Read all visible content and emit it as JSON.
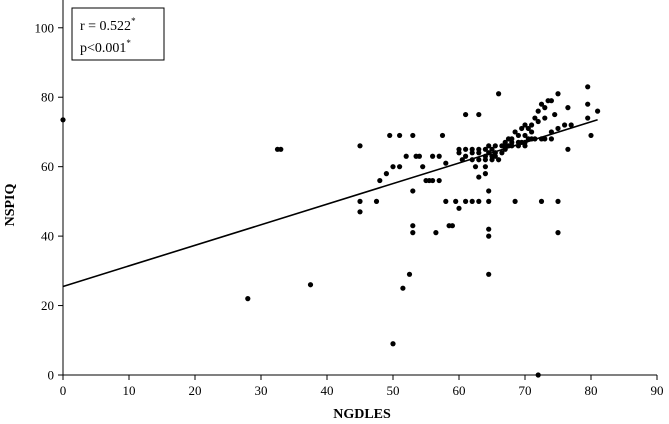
{
  "chart_data": {
    "type": "scatter",
    "title": "",
    "xlabel": "NGDLES",
    "ylabel": "NSPIQ",
    "xlim": [
      0,
      90
    ],
    "ylim": [
      0,
      108
    ],
    "x_ticks": [
      "0",
      "10",
      "20",
      "30",
      "40",
      "50",
      "60",
      "70",
      "80",
      "90"
    ],
    "y_ticks": [
      "0",
      "20",
      "40",
      "60",
      "80",
      "100"
    ],
    "grid": false,
    "legend": "none",
    "annotation": {
      "r_text": "r = 0.522",
      "p_text": "p<0.001",
      "sig_marker": "*"
    },
    "regression_line": {
      "x": [
        0,
        81
      ],
      "y": [
        25.5,
        73.5
      ]
    },
    "colors": {
      "points": "#000000",
      "line": "#000000",
      "axes": "#000000"
    },
    "points": [
      [
        0,
        73.5
      ],
      [
        28,
        22
      ],
      [
        32.5,
        65
      ],
      [
        33,
        65
      ],
      [
        37.5,
        26
      ],
      [
        45,
        66
      ],
      [
        45,
        50
      ],
      [
        45,
        47
      ],
      [
        47.5,
        50
      ],
      [
        48,
        56
      ],
      [
        49,
        58
      ],
      [
        49.5,
        69
      ],
      [
        50,
        60
      ],
      [
        50,
        9
      ],
      [
        51,
        69
      ],
      [
        51,
        60
      ],
      [
        51.5,
        25
      ],
      [
        52,
        63
      ],
      [
        52.5,
        29
      ],
      [
        53,
        69
      ],
      [
        53,
        53
      ],
      [
        53,
        43
      ],
      [
        53,
        41
      ],
      [
        53.5,
        63
      ],
      [
        54,
        63
      ],
      [
        54.5,
        60
      ],
      [
        55,
        56
      ],
      [
        55.5,
        56
      ],
      [
        56,
        63
      ],
      [
        56,
        56
      ],
      [
        56.5,
        41
      ],
      [
        57,
        63
      ],
      [
        57,
        56
      ],
      [
        57.5,
        69
      ],
      [
        58,
        61
      ],
      [
        58,
        50
      ],
      [
        58.5,
        43
      ],
      [
        59,
        43
      ],
      [
        59.5,
        50
      ],
      [
        60,
        48
      ],
      [
        60,
        64
      ],
      [
        60,
        65
      ],
      [
        60.5,
        62
      ],
      [
        61,
        63
      ],
      [
        61,
        65
      ],
      [
        61,
        75
      ],
      [
        61,
        50
      ],
      [
        62,
        62
      ],
      [
        62,
        64
      ],
      [
        62,
        65
      ],
      [
        62,
        50
      ],
      [
        62.5,
        60
      ],
      [
        63,
        75
      ],
      [
        63,
        62
      ],
      [
        63,
        64
      ],
      [
        63,
        65
      ],
      [
        63,
        57
      ],
      [
        63,
        50
      ],
      [
        64,
        65
      ],
      [
        64,
        63
      ],
      [
        64,
        62
      ],
      [
        64,
        60
      ],
      [
        64,
        58
      ],
      [
        64.5,
        64
      ],
      [
        64.5,
        66
      ],
      [
        64.5,
        53
      ],
      [
        64.5,
        50
      ],
      [
        64.5,
        42
      ],
      [
        64.5,
        40
      ],
      [
        64.5,
        29
      ],
      [
        65,
        65
      ],
      [
        65,
        63
      ],
      [
        65,
        62
      ],
      [
        65.5,
        66
      ],
      [
        65.5,
        64
      ],
      [
        65.5,
        63
      ],
      [
        66,
        81
      ],
      [
        66,
        62
      ],
      [
        66.5,
        66
      ],
      [
        66.5,
        64
      ],
      [
        67,
        65
      ],
      [
        67,
        66
      ],
      [
        67,
        67
      ],
      [
        67.5,
        68
      ],
      [
        67.5,
        66
      ],
      [
        68,
        68
      ],
      [
        68,
        66
      ],
      [
        68,
        67
      ],
      [
        68.5,
        70
      ],
      [
        68.5,
        50
      ],
      [
        69,
        69
      ],
      [
        69,
        67
      ],
      [
        69,
        66
      ],
      [
        69.5,
        71
      ],
      [
        69.5,
        67
      ],
      [
        70,
        72
      ],
      [
        70,
        69
      ],
      [
        70,
        67
      ],
      [
        70,
        66
      ],
      [
        70.5,
        71
      ],
      [
        70.5,
        68
      ],
      [
        71,
        72
      ],
      [
        71,
        70
      ],
      [
        71,
        68
      ],
      [
        71.5,
        74
      ],
      [
        71.5,
        68
      ],
      [
        72,
        76
      ],
      [
        72,
        73
      ],
      [
        72,
        0
      ],
      [
        72.5,
        78
      ],
      [
        72.5,
        68
      ],
      [
        72.5,
        50
      ],
      [
        73,
        77
      ],
      [
        73,
        74
      ],
      [
        73,
        68
      ],
      [
        73.5,
        79
      ],
      [
        74,
        79
      ],
      [
        74,
        70
      ],
      [
        74,
        68
      ],
      [
        74.5,
        75
      ],
      [
        75,
        81
      ],
      [
        75,
        71
      ],
      [
        75,
        50
      ],
      [
        75,
        41
      ],
      [
        76,
        72
      ],
      [
        76.5,
        77
      ],
      [
        76.5,
        65
      ],
      [
        77,
        72
      ],
      [
        79.5,
        83
      ],
      [
        79.5,
        78
      ],
      [
        79.5,
        74
      ],
      [
        80,
        69
      ],
      [
        81,
        76
      ]
    ]
  }
}
